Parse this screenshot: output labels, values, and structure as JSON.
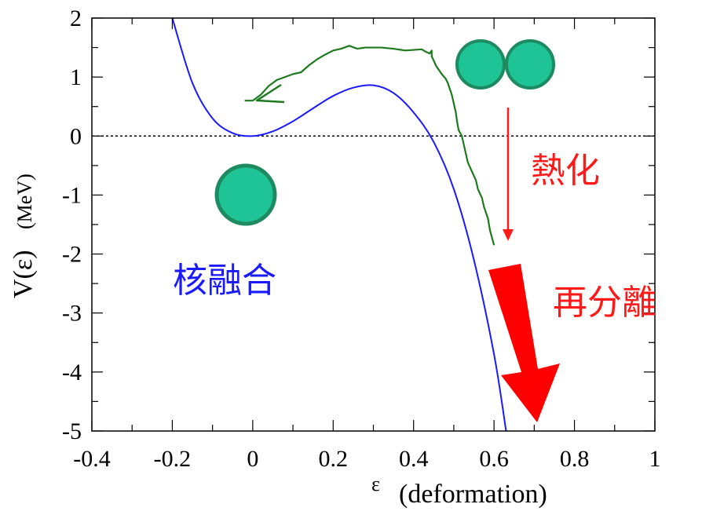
{
  "chart_data": {
    "type": "line",
    "xlabel": {
      "symbol": "ε",
      "text": "(deformation)"
    },
    "ylabel": {
      "symbol": "V(ε)",
      "text": "(MeV)"
    },
    "xlim": [
      -0.4,
      1.0
    ],
    "ylim": [
      -5,
      2
    ],
    "x_ticks": [
      "-0.4",
      "-0.2",
      "0",
      "0.2",
      "0.4",
      "0.6",
      "0.8",
      "1"
    ],
    "y_ticks": [
      "2",
      "1",
      "0",
      "-1",
      "-2",
      "-3",
      "-4",
      "-5"
    ],
    "x_tick_values": [
      -0.4,
      -0.2,
      0,
      0.2,
      0.4,
      0.6,
      0.8,
      1.0
    ],
    "y_tick_values": [
      2,
      1,
      0,
      -1,
      -2,
      -3,
      -4,
      -5
    ],
    "zero_reference_line": {
      "y": 0,
      "style": "dotted"
    },
    "series": [
      {
        "color": "#1a1aff",
        "x": [
          -0.2,
          -0.15,
          -0.1,
          -0.05,
          0.0,
          0.05,
          0.1,
          0.15,
          0.2,
          0.25,
          0.3,
          0.35,
          0.4,
          0.45,
          0.5,
          0.55,
          0.6,
          0.63
        ],
        "y": [
          2.0,
          0.9,
          0.3,
          0.05,
          0.0,
          0.08,
          0.25,
          0.47,
          0.68,
          0.82,
          0.86,
          0.73,
          0.4,
          -0.1,
          -0.9,
          -2.1,
          -3.7,
          -5.0
        ]
      }
    ],
    "trajectory": {
      "color": "#1e7a1e",
      "x": [
        0.6,
        0.59,
        0.585,
        0.575,
        0.57,
        0.56,
        0.555,
        0.545,
        0.535,
        0.53,
        0.525,
        0.52,
        0.512,
        0.508,
        0.505,
        0.5,
        0.495,
        0.49,
        0.485,
        0.48,
        0.47,
        0.46,
        0.455,
        0.45,
        0.445,
        0.445,
        0.44,
        0.43,
        0.42,
        0.4,
        0.38,
        0.35,
        0.32,
        0.3,
        0.28,
        0.26,
        0.24,
        0.22,
        0.2,
        0.18,
        0.16,
        0.14,
        0.12,
        0.1,
        0.08,
        0.06,
        0.04,
        0.02,
        0.0,
        -0.02
      ],
      "y": [
        -1.85,
        -1.6,
        -1.4,
        -1.2,
        -1.05,
        -0.9,
        -0.75,
        -0.6,
        -0.45,
        -0.3,
        -0.15,
        0.0,
        0.1,
        0.25,
        0.4,
        0.55,
        0.7,
        0.8,
        0.9,
        0.97,
        1.05,
        1.15,
        1.2,
        1.28,
        1.35,
        1.45,
        1.4,
        1.43,
        1.47,
        1.46,
        1.45,
        1.48,
        1.5,
        1.5,
        1.5,
        1.48,
        1.53,
        1.48,
        1.45,
        1.38,
        1.3,
        1.2,
        1.08,
        1.05,
        1.0,
        0.95,
        0.85,
        0.7,
        0.6,
        0.6
      ]
    },
    "nucleus_colors": {
      "fill": "#1fc496",
      "stroke": "#1e8a60"
    },
    "annotations": [
      {
        "text": "熱化",
        "color": "#ff1a1a"
      },
      {
        "text": "再分離",
        "color": "#ff1a1a"
      },
      {
        "text": "核融合",
        "color": "#1a1aff"
      }
    ],
    "thin_arrow_color": "#ff1a1a",
    "thick_arrow_color": "#ff0000"
  }
}
